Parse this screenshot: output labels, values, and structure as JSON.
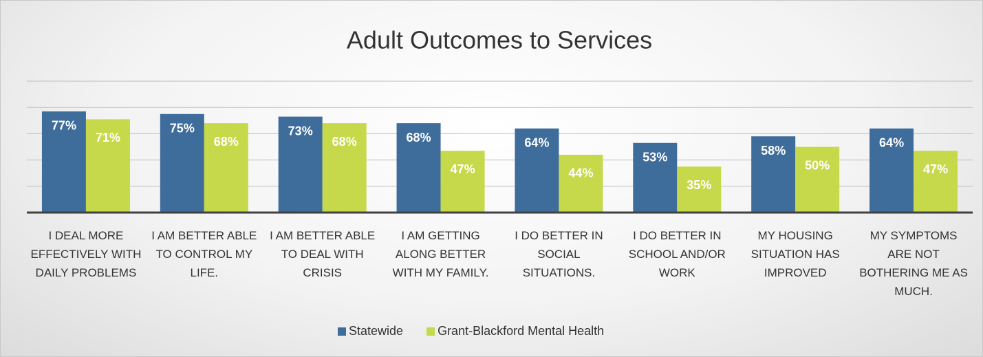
{
  "chart_data": {
    "type": "bar",
    "title": "Adult Outcomes to Services",
    "categories": [
      "I DEAL MORE EFFECTIVELY WITH DAILY PROBLEMS",
      "I AM BETTER ABLE TO CONTROL MY LIFE.",
      "I AM BETTER ABLE TO DEAL WITH CRISIS",
      "I AM GETTING ALONG BETTER WITH MY FAMILY.",
      "I DO BETTER IN SOCIAL SITUATIONS.",
      "I DO BETTER IN SCHOOL AND/OR WORK",
      "MY HOUSING SITUATION HAS IMPROVED",
      "MY SYMPTOMS ARE NOT BOTHERING ME AS MUCH."
    ],
    "series": [
      {
        "name": "Statewide",
        "color": "#3e6c9b",
        "values": [
          77,
          75,
          73,
          68,
          64,
          53,
          58,
          64
        ],
        "value_labels": [
          "77%",
          "75%",
          "73%",
          "68%",
          "64%",
          "53%",
          "58%",
          "64%"
        ]
      },
      {
        "name": "Grant-Blackford Mental Health",
        "color": "#c5d94a",
        "values": [
          71,
          68,
          68,
          47,
          44,
          35,
          50,
          47
        ],
        "value_labels": [
          "71%",
          "68%",
          "68%",
          "47%",
          "44%",
          "35%",
          "50%",
          "47%"
        ]
      }
    ],
    "ylim": [
      0,
      100
    ],
    "yticks": [
      0,
      20,
      40,
      60,
      80,
      100
    ],
    "grid": true,
    "legend": "bottom"
  }
}
